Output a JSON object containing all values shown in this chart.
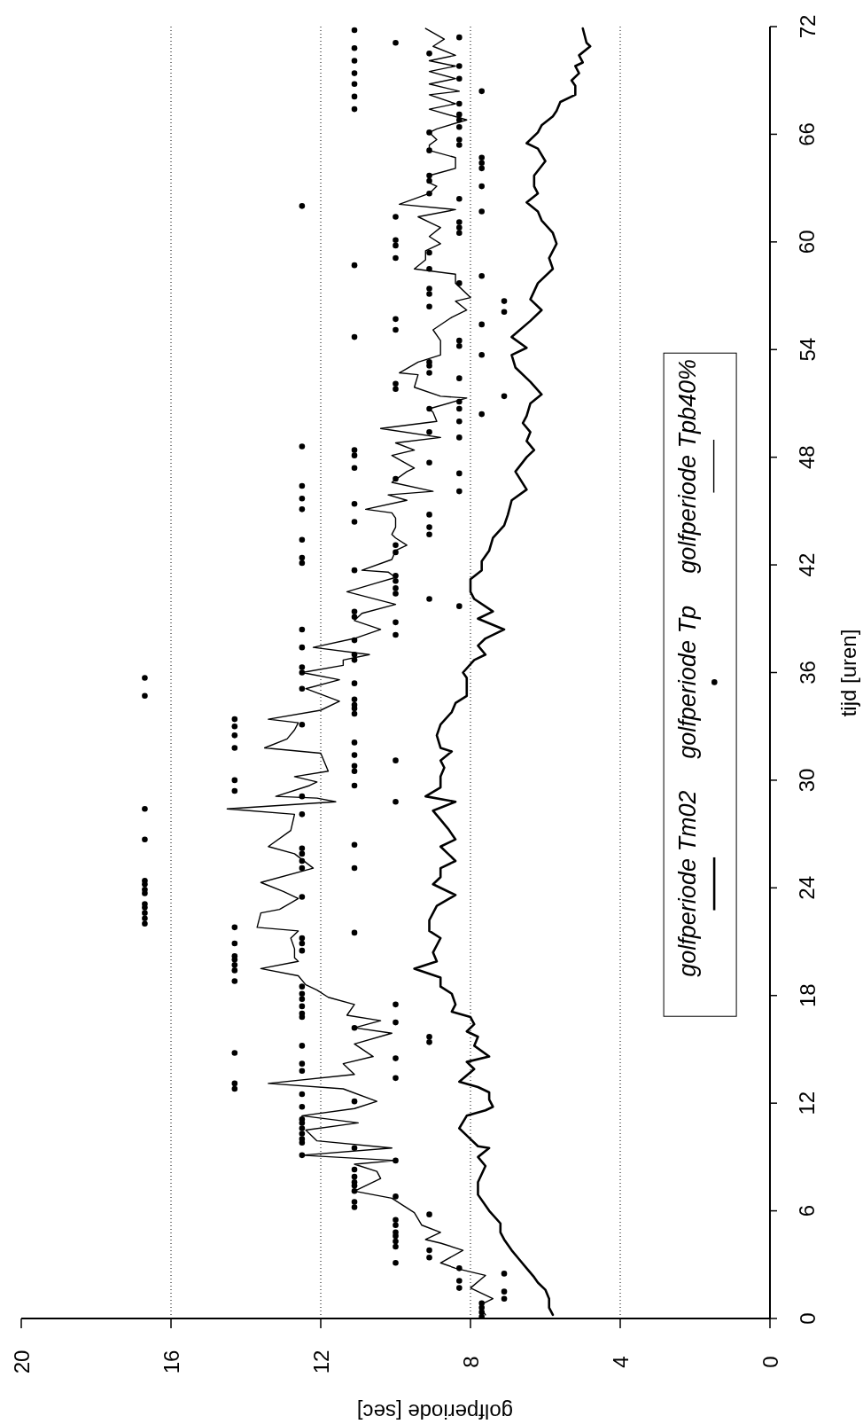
{
  "chart_data": {
    "type": "line",
    "xlabel": "golfperiode [sec]",
    "ylabel": "tijd [uren]",
    "xlim": [
      20,
      0
    ],
    "xticks": [
      0,
      4,
      8,
      12,
      16,
      20
    ],
    "ylim": [
      0,
      72
    ],
    "yticks": [
      0,
      6,
      12,
      18,
      24,
      30,
      36,
      42,
      48,
      54,
      60,
      66,
      72
    ],
    "grid": "x",
    "legend": "right",
    "series": [
      {
        "name": "golfperiode Tm02",
        "color": "#000000",
        "x": [
          5.8,
          5.9,
          5.9,
          6.0,
          6.2,
          6.3,
          6.5,
          6.7,
          6.9,
          7.1,
          7.2,
          7.2,
          7.5,
          7.8,
          7.8,
          7.6,
          7.8,
          7.5,
          7.8,
          8.1,
          8.3,
          8.1,
          7.6,
          7.4,
          7.5,
          7.5,
          7.8,
          8.3,
          7.9,
          8.1,
          7.5,
          7.9,
          7.8,
          8.1,
          7.9,
          8.0,
          8.5,
          8.4,
          8.5,
          8.8,
          8.8,
          9.5,
          8.9,
          9.0,
          8.8,
          9.1,
          9.1,
          8.9,
          8.4,
          9.0,
          8.8,
          8.8,
          8.4,
          8.6,
          8.8,
          8.4,
          8.6,
          8.8,
          9.0,
          8.4,
          9.2,
          8.8,
          8.8,
          8.7,
          8.8,
          8.5,
          8.8,
          8.9,
          8.8,
          8.5,
          8.4,
          8.1,
          8.1,
          8.2,
          7.9,
          7.6,
          7.8,
          7.6,
          7.1,
          7.8,
          7.4,
          7.9,
          8.0,
          8.0,
          7.7,
          7.7,
          7.5,
          7.4,
          7.1,
          7.0,
          6.9,
          6.5,
          6.8,
          6.5,
          6.3,
          6.5,
          6.4,
          6.6,
          6.5,
          6.4,
          6.1,
          6.4,
          6.8,
          6.9,
          6.5,
          6.9,
          6.4,
          6.1,
          6.4,
          6.2,
          5.8,
          5.9,
          5.7,
          5.8,
          6.1,
          6.2,
          6.5,
          6.2,
          6.3,
          6.3,
          6.0,
          6.2,
          6.5,
          6.2,
          6.1,
          5.8,
          5.7,
          5.6,
          5.2,
          5.2,
          5.3,
          5.1,
          5.2,
          5.0,
          5.1,
          4.8,
          4.9,
          5.0
        ],
        "values": [
          0.2,
          0.6,
          1.1,
          1.6,
          2.0,
          2.3,
          2.8,
          3.3,
          3.8,
          4.4,
          4.8,
          5.3,
          6.0,
          6.9,
          7.6,
          8.5,
          9.0,
          9.5,
          9.6,
          10.2,
          10.6,
          11.3,
          11.6,
          11.8,
          12.2,
          12.6,
          12.9,
          13.2,
          13.9,
          14.3,
          14.6,
          15.2,
          15.7,
          16.0,
          16.4,
          16.8,
          17.1,
          17.5,
          18.1,
          18.5,
          19.0,
          19.5,
          19.9,
          20.4,
          21.2,
          21.6,
          22.2,
          23.0,
          23.6,
          24.2,
          24.6,
          25.1,
          25.5,
          25.9,
          26.3,
          26.7,
          27.3,
          27.8,
          28.3,
          28.8,
          29.1,
          29.6,
          30.2,
          30.7,
          31.1,
          31.6,
          31.8,
          32.5,
          33.1,
          33.8,
          34.3,
          34.7,
          35.7,
          36.0,
          36.7,
          37.0,
          37.5,
          37.9,
          38.4,
          39.0,
          39.4,
          40.1,
          40.5,
          41.2,
          41.7,
          42.2,
          42.8,
          43.5,
          44.2,
          44.8,
          45.6,
          46.2,
          47.2,
          48.0,
          48.4,
          48.9,
          49.4,
          49.9,
          50.3,
          51.0,
          51.5,
          52.2,
          53.0,
          53.7,
          54.1,
          54.7,
          55.6,
          56.2,
          56.8,
          57.7,
          58.5,
          59.1,
          59.9,
          60.5,
          61.2,
          61.7,
          62.2,
          62.7,
          63.1,
          63.7,
          64.5,
          65.2,
          65.5,
          66.1,
          66.5,
          67.0,
          67.3,
          67.8,
          68.2,
          68.7,
          69.0,
          69.4,
          69.8,
          70.0,
          70.4,
          70.9,
          71.1,
          71.9
        ]
      },
      {
        "name": "golfperiode Tp",
        "type": "scatter",
        "marker": "circle",
        "color": "#000000",
        "x": [
          7.7,
          7.7,
          7.7,
          7.7,
          7.1,
          7.1,
          8.3,
          8.3,
          7.1,
          8.3,
          10.0,
          9.1,
          9.1,
          10.0,
          10.0,
          10.0,
          10.0,
          10.0,
          10.0,
          9.1,
          11.1,
          11.1,
          10.0,
          11.1,
          11.1,
          11.1,
          11.1,
          11.1,
          10.0,
          12.5,
          11.1,
          12.5,
          12.5,
          12.5,
          12.5,
          12.5,
          12.5,
          12.5,
          11.1,
          12.5,
          14.3,
          14.3,
          10.0,
          12.5,
          12.5,
          10.0,
          14.3,
          12.5,
          9.1,
          9.1,
          11.1,
          10.0,
          12.5,
          12.5,
          12.5,
          10.0,
          12.5,
          12.5,
          12.5,
          14.3,
          14.3,
          14.3,
          14.3,
          14.3,
          12.5,
          14.3,
          12.5,
          12.5,
          11.1,
          14.3,
          16.7,
          16.7,
          16.7,
          16.7,
          16.7,
          12.5,
          16.7,
          16.7,
          16.7,
          16.7,
          12.5,
          11.1,
          12.5,
          12.5,
          12.5,
          11.1,
          16.7,
          12.5,
          16.7,
          10.0,
          12.5,
          14.3,
          11.1,
          14.3,
          11.1,
          11.1,
          10.0,
          11.1,
          14.3,
          11.1,
          14.3,
          14.3,
          12.5,
          14.3,
          11.1,
          11.1,
          11.1,
          11.1,
          16.7,
          12.5,
          11.1,
          16.7,
          12.5,
          12.5,
          11.1,
          11.1,
          12.5,
          11.1,
          10.0,
          12.5,
          10.0,
          11.1,
          11.1,
          8.3,
          9.1,
          10.0,
          10.0,
          10.0,
          10.0,
          11.1,
          12.5,
          12.5,
          10.0,
          10.0,
          12.5,
          9.1,
          9.1,
          11.1,
          9.1,
          12.5,
          11.1,
          12.5,
          8.3,
          12.5,
          10.0,
          8.3,
          11.1,
          9.1,
          11.1,
          11.1,
          12.5,
          8.3,
          9.1,
          8.3,
          7.7,
          8.3,
          9.1,
          8.3,
          7.1,
          10.0,
          10.0,
          8.3,
          9.1,
          9.1,
          9.1,
          7.7,
          8.3,
          8.3,
          11.1,
          10.0,
          7.7,
          10.0,
          7.1,
          9.1,
          7.1,
          9.1,
          9.1,
          8.3,
          7.7,
          9.1,
          11.1,
          10.0,
          9.1,
          10.0,
          10.0,
          8.3,
          8.3,
          8.3,
          10.0,
          7.7,
          12.5,
          8.3,
          9.1,
          7.7,
          9.1,
          9.1,
          7.7,
          7.7,
          7.7,
          9.1,
          8.3,
          8.3,
          9.1,
          8.3,
          8.3,
          8.3,
          11.1,
          8.3,
          11.1,
          7.7,
          11.1,
          8.3,
          11.1,
          8.3,
          11.1,
          9.1,
          11.1,
          10.0,
          8.3,
          11.1
        ],
        "values": [
          0.1,
          0.35,
          0.6,
          0.85,
          1.1,
          1.5,
          1.7,
          2.1,
          2.5,
          2.8,
          3.1,
          3.4,
          3.8,
          4.0,
          4.3,
          4.6,
          4.8,
          5.2,
          5.5,
          5.8,
          6.2,
          6.5,
          6.8,
          7.1,
          7.4,
          7.6,
          7.9,
          8.3,
          8.8,
          9.1,
          9.5,
          9.8,
          10.0,
          10.3,
          10.6,
          10.9,
          11.1,
          11.8,
          12.1,
          12.5,
          12.8,
          13.1,
          13.4,
          13.8,
          14.2,
          14.5,
          14.8,
          15.2,
          15.4,
          15.7,
          16.2,
          16.5,
          16.8,
          17.0,
          17.4,
          17.5,
          17.8,
          18.1,
          18.5,
          18.8,
          19.4,
          19.7,
          20.0,
          20.2,
          20.5,
          20.9,
          20.9,
          21.2,
          21.5,
          21.8,
          22.0,
          22.3,
          22.6,
          22.9,
          23.1,
          23.5,
          23.7,
          23.9,
          24.2,
          24.4,
          25.1,
          25.1,
          25.5,
          25.9,
          26.2,
          26.4,
          26.7,
          28.1,
          28.4,
          28.8,
          29.1,
          29.4,
          29.7,
          30.0,
          30.5,
          30.8,
          31.1,
          31.4,
          31.8,
          32.1,
          32.5,
          33.0,
          33.1,
          33.4,
          33.7,
          34.0,
          34.2,
          34.5,
          34.7,
          35.1,
          35.4,
          35.7,
          36.0,
          36.3,
          36.7,
          37.0,
          37.4,
          37.8,
          38.1,
          38.4,
          38.8,
          39.1,
          39.4,
          39.7,
          40.1,
          40.4,
          40.7,
          41.1,
          41.4,
          41.7,
          42.1,
          42.4,
          42.7,
          43.1,
          43.4,
          43.7,
          44.1,
          44.4,
          44.8,
          45.1,
          45.4,
          45.7,
          46.1,
          46.4,
          46.8,
          47.1,
          47.4,
          47.7,
          48.1,
          48.4,
          48.6,
          49.1,
          49.4,
          50.0,
          50.4,
          50.7,
          50.7,
          51.1,
          51.4,
          51.8,
          52.1,
          52.4,
          52.7,
          53.1,
          53.3,
          53.7,
          54.2,
          54.5,
          54.7,
          55.1,
          55.4,
          55.7,
          56.1,
          56.4,
          56.7,
          57.1,
          57.4,
          57.7,
          58.1,
          58.5,
          58.7,
          59.1,
          59.4,
          59.8,
          60.1,
          60.5,
          60.8,
          61.1,
          61.4,
          61.7,
          62.0,
          62.4,
          62.7,
          63.1,
          63.4,
          63.7,
          64.1,
          64.4,
          64.7,
          65.1,
          65.4,
          65.7,
          66.1,
          66.4,
          66.8,
          67.1,
          67.4,
          67.7,
          68.1,
          68.4,
          68.8,
          69.1,
          69.4,
          69.8,
          70.1,
          70.5,
          70.8,
          71.1,
          71.4,
          71.8
        ]
      },
      {
        "name": "golfperiode Tpb40%",
        "color": "#000000",
        "x": [
          7.6,
          7.7,
          7.7,
          7.4,
          8.0,
          7.6,
          8.4,
          8.8,
          8.2,
          8.8,
          9.2,
          8.8,
          9.3,
          9.5,
          10.1,
          11.1,
          10.4,
          10.5,
          11.1,
          10.0,
          12.5,
          10.1,
          12.1,
          12.4,
          11.0,
          12.5,
          11.1,
          10.5,
          11.4,
          13.4,
          11.1,
          11.4,
          10.6,
          11.1,
          10.1,
          11.1,
          10.4,
          11.3,
          11.1,
          11.8,
          12.1,
          12.4,
          12.6,
          13.6,
          12.6,
          12.7,
          12.7,
          12.8,
          12.6,
          13.7,
          13.6,
          13.1,
          12.6,
          13.0,
          13.6,
          12.2,
          12.7,
          13.4,
          12.8,
          12.7,
          14.5,
          11.6,
          12.1,
          13.2,
          12.3,
          12.1,
          12.7,
          11.8,
          12.0,
          13.5,
          12.9,
          12.7,
          12.6,
          13.4,
          12.0,
          11.5,
          12.4,
          11.5,
          12.5,
          11.4,
          11.4,
          10.7,
          12.2,
          11.1,
          10.4,
          11.1,
          10.9,
          10.0,
          11.3,
          10.5,
          10.0,
          10.2,
          10.9,
          10.1,
          10.0,
          9.7,
          10.0,
          10.1,
          10.0,
          10.0,
          10.1,
          10.8,
          9.7,
          10.2,
          9.0,
          10.1,
          9.7,
          9.5,
          10.1,
          9.5,
          10.0,
          8.8,
          10.4,
          8.9,
          9.0,
          9.1,
          8.1,
          8.8,
          9.5,
          9.4,
          9.9,
          9.4,
          9.1,
          8.8,
          8.8,
          9.0,
          8.5,
          8.1,
          8.4,
          8.0,
          8.4,
          8.4,
          9.5,
          9.2,
          9.2,
          8.8,
          9.1,
          8.8,
          9.0,
          9.4,
          8.4,
          9.9,
          9.1,
          8.9,
          9.1,
          9.1,
          8.4,
          8.4,
          9.1,
          9.1,
          8.9,
          9.1,
          8.9,
          8.1,
          9.1,
          8.4,
          9.1,
          8.3,
          9.1,
          8.4,
          9.1,
          8.4,
          9.1,
          8.4,
          9.0,
          8.7,
          9.2
        ],
        "values": [
          0.2,
          0.5,
          0.8,
          1.1,
          1.7,
          2.4,
          2.8,
          3.1,
          3.8,
          4.2,
          4.4,
          4.8,
          5.2,
          5.9,
          6.7,
          7.1,
          7.8,
          8.2,
          8.6,
          8.8,
          9.1,
          9.5,
          9.9,
          10.5,
          10.9,
          11.3,
          11.7,
          12.1,
          12.8,
          13.1,
          13.6,
          14.2,
          14.6,
          15.3,
          15.9,
          16.2,
          16.6,
          16.9,
          17.5,
          17.9,
          18.3,
          18.6,
          19.1,
          19.5,
          19.9,
          20.1,
          20.6,
          21.2,
          21.6,
          21.8,
          22.6,
          22.8,
          23.4,
          23.8,
          24.3,
          25.1,
          25.9,
          26.3,
          27.2,
          28.1,
          28.4,
          28.8,
          29.0,
          29.1,
          29.7,
          29.9,
          30.2,
          30.5,
          31.5,
          31.8,
          32.3,
          32.8,
          33.2,
          33.4,
          33.9,
          34.4,
          35.1,
          35.6,
          36.0,
          36.4,
          36.7,
          37.0,
          37.4,
          37.9,
          38.4,
          38.9,
          39.3,
          39.8,
          40.5,
          41.0,
          41.3,
          41.6,
          41.7,
          42.3,
          42.8,
          43.1,
          43.5,
          43.7,
          44.1,
          44.6,
          44.9,
          45.1,
          45.6,
          45.9,
          46.1,
          46.6,
          47.2,
          47.4,
          48.1,
          48.4,
          48.8,
          49.1,
          49.6,
          50.0,
          50.5,
          50.7,
          51.3,
          51.4,
          51.9,
          52.6,
          52.7,
          53.3,
          53.5,
          53.7,
          54.5,
          55.1,
          55.8,
          56.2,
          56.7,
          56.9,
          57.7,
          58.2,
          58.5,
          59.0,
          59.5,
          59.9,
          60.3,
          60.8,
          61.0,
          61.4,
          61.8,
          62.1,
          62.7,
          63.1,
          63.3,
          63.7,
          64.1,
          64.7,
          65.1,
          65.4,
          65.7,
          66.1,
          66.3,
          66.8,
          67.4,
          67.7,
          68.2,
          68.4,
          68.8,
          69.1,
          69.5,
          69.8,
          70.1,
          70.4,
          70.9,
          71.3,
          71.9
        ]
      }
    ]
  }
}
